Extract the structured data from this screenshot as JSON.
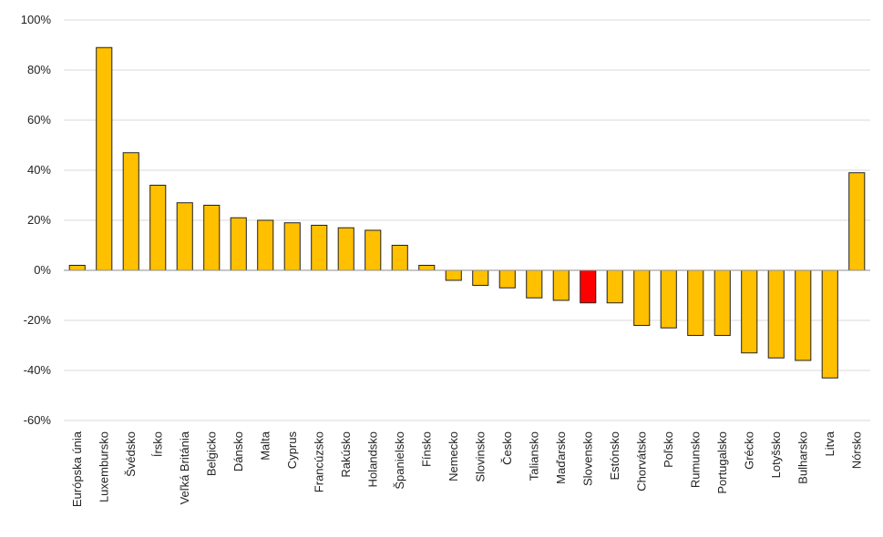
{
  "chart_data": {
    "type": "bar",
    "categories": [
      "Európska únia",
      "Luxembursko",
      "Švédsko",
      "Írsko",
      "Veľká Británia",
      "Belgicko",
      "Dánsko",
      "Malta",
      "Cyprus",
      "Francúzsko",
      "Rakúsko",
      "Holandsko",
      "Španielsko",
      "Fínsko",
      "Nemecko",
      "Slovinsko",
      "Česko",
      "Taliansko",
      "Maďarsko",
      "Slovensko",
      "Estónsko",
      "Chorvátsko",
      "Poľsko",
      "Rumunsko",
      "Portugalsko",
      "Grécko",
      "Lotyšsko",
      "Bulharsko",
      "Litva",
      "Nórsko"
    ],
    "values": [
      2,
      89,
      47,
      34,
      27,
      26,
      21,
      20,
      19,
      18,
      17,
      16,
      10,
      2,
      -4,
      -6,
      -7,
      -11,
      -12,
      -13,
      -13,
      -22,
      -23,
      -26,
      -26,
      -33,
      -35,
      -36,
      -43,
      39
    ],
    "highlight_category": "Slovensko",
    "ylim": [
      -60,
      100
    ],
    "yticks": [
      100,
      80,
      60,
      40,
      20,
      0,
      -20,
      -40,
      -60
    ],
    "ytick_suffix": "%",
    "grid": true,
    "colors": {
      "bar": "#ffc000",
      "highlight": "#ff0000",
      "outline": "#222222"
    }
  }
}
